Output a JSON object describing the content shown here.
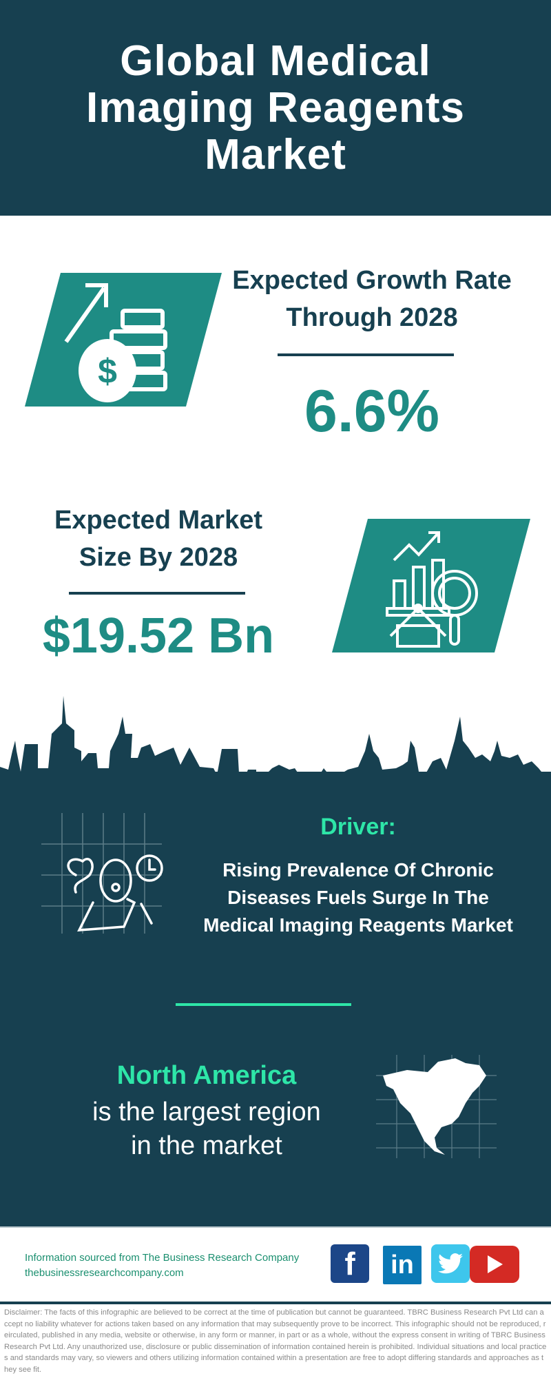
{
  "header": {
    "title": "Global Medical Imaging Reagents Market"
  },
  "growth": {
    "title": "Expected Growth Rate Through 2028",
    "value": "6.6%",
    "icon": "money-growth-icon"
  },
  "market_size": {
    "title": "Expected Market Size By 2028",
    "value": "$19.52 Bn",
    "icon": "market-analysis-icon"
  },
  "driver": {
    "label": "Driver:",
    "text": "Rising Prevalence Of Chronic Diseases Fuels Surge In The Medical Imaging Reagents Market",
    "icon": "patient-icon"
  },
  "region": {
    "name": "North America",
    "line1": "is the largest region",
    "line2": "in the market",
    "icon": "north-america-map-icon"
  },
  "footer": {
    "source": "Information sourced from The Business Research Company",
    "website": "thebusinessresearchcompany.com",
    "social": [
      "facebook",
      "linkedin",
      "twitter",
      "youtube"
    ]
  },
  "disclaimer": "Disclaimer: The facts of this infographic are believed to be correct at the time of publication but cannot be guaranteed. TBRC Business Research Pvt Ltd can accept no liability whatever for actions taken based on any information that may subsequently prove to be incorrect. This infographic should not be reproduced, reirculated, published in any media, website or otherwise, in any form or manner, in part or as a whole, without the express consent in writing of TBRC Business Research Pvt Ltd. Any unauthorized use, disclosure or public dissemination of information contained herein is prohibited. Individual situations and local practices and standards may vary, so viewers and others utilizing information contained within a presentation are free to adopt differing standards and approaches as they see fit.",
  "colors": {
    "dark": "#174050",
    "teal": "#1e8c84",
    "accent": "#2ee6a8"
  }
}
